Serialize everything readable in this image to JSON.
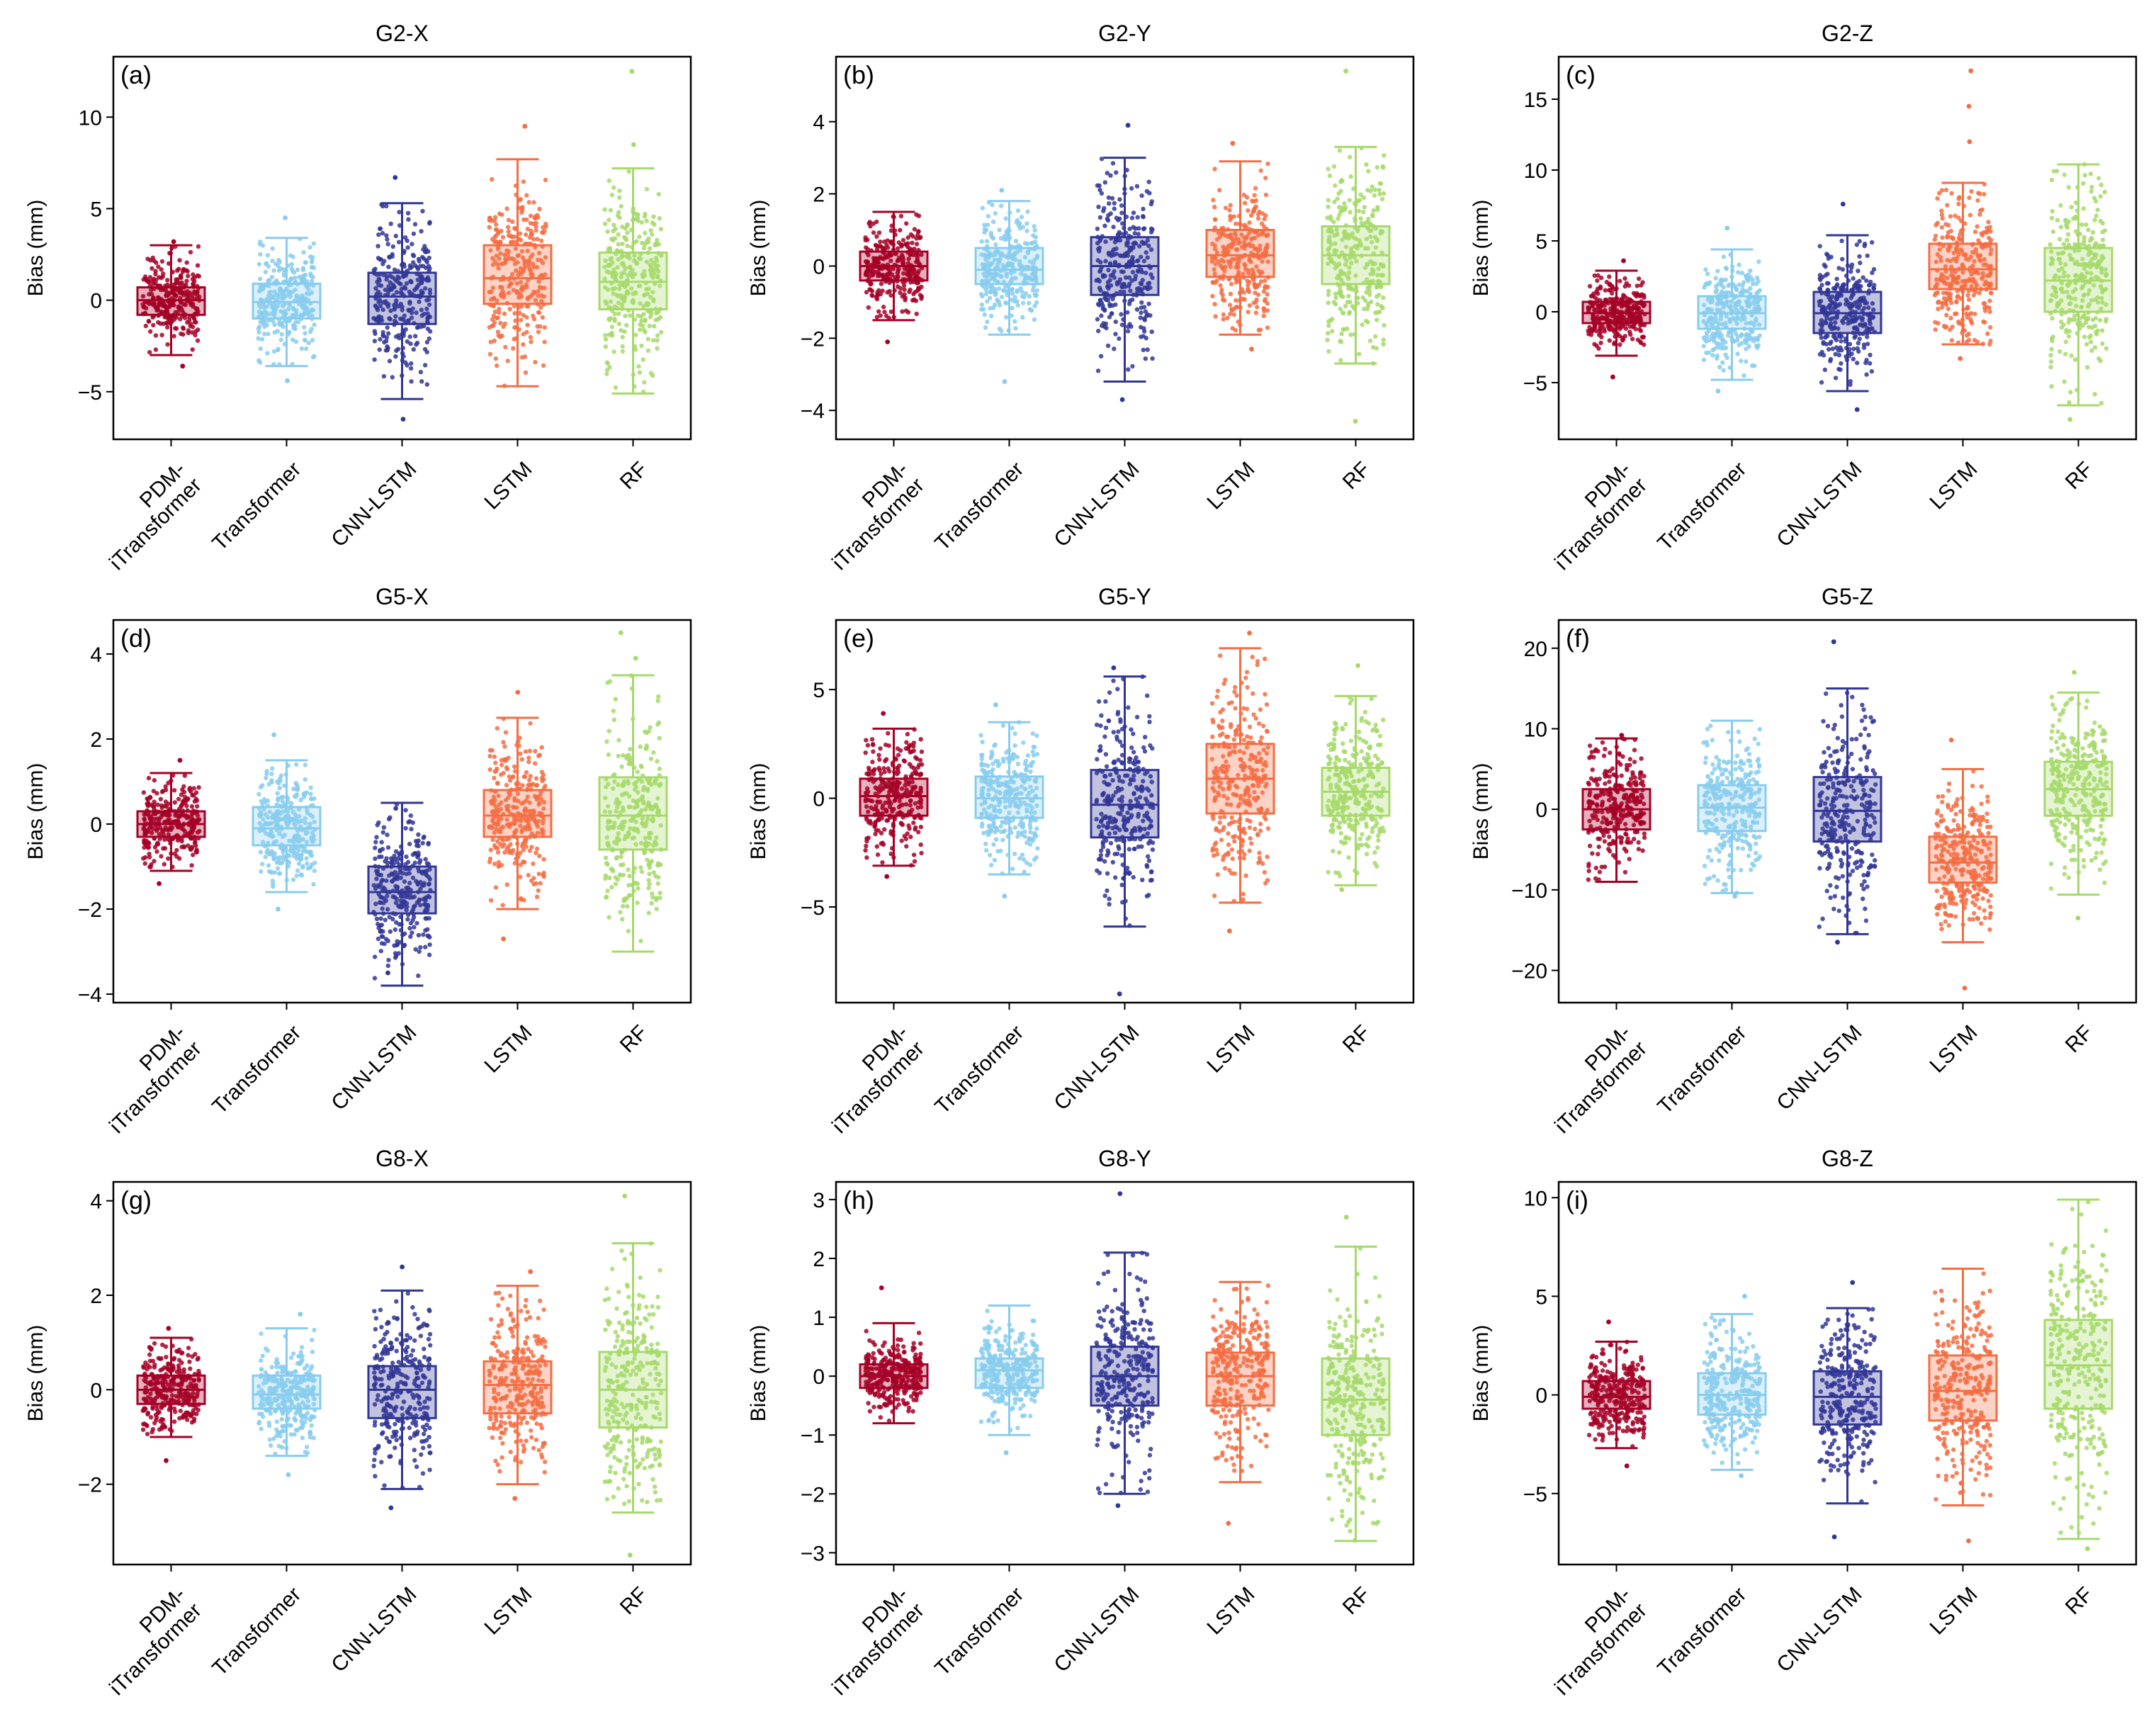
{
  "colors": {
    "PDM-iTransformer": "#a50026",
    "Transformer": "#88ccee",
    "CNN-LSTM": "#313695",
    "LSTM": "#f46d43",
    "RF": "#a6d96a"
  },
  "chart_data": [
    {
      "type": "box",
      "panel_label": "(a)",
      "title": "G2-X",
      "ylabel": "Bias (mm)",
      "ylim": [
        -7.6,
        13.3
      ],
      "yticks": [
        -5,
        0,
        5,
        10
      ],
      "categories": [
        "PDM-\niTransformer",
        "Transformer",
        "CNN-LSTM",
        "LSTM",
        "RF"
      ],
      "series": [
        {
          "name": "PDM-iTransformer",
          "whisker_low": -3.0,
          "q1": -0.8,
          "median": 0.0,
          "q3": 0.7,
          "whisker_high": 3.0,
          "outliers": [
            3.2,
            -3.6
          ]
        },
        {
          "name": "Transformer",
          "whisker_low": -3.6,
          "q1": -1.0,
          "median": -0.1,
          "q3": 0.9,
          "whisker_high": 3.4,
          "outliers": [
            4.5,
            -4.4
          ]
        },
        {
          "name": "CNN-LSTM",
          "whisker_low": -5.4,
          "q1": -1.3,
          "median": 0.2,
          "q3": 1.5,
          "whisker_high": 5.3,
          "outliers": [
            6.7,
            -6.5
          ]
        },
        {
          "name": "LSTM",
          "whisker_low": -4.7,
          "q1": -0.2,
          "median": 1.2,
          "q3": 3.0,
          "whisker_high": 7.7,
          "outliers": [
            9.5
          ]
        },
        {
          "name": "RF",
          "whisker_low": -5.1,
          "q1": -0.5,
          "median": 1.0,
          "q3": 2.6,
          "whisker_high": 7.2,
          "outliers": [
            12.5,
            8.5
          ]
        }
      ]
    },
    {
      "type": "box",
      "panel_label": "(b)",
      "title": "G2-Y",
      "ylabel": "Bias (mm)",
      "ylim": [
        -4.8,
        5.8
      ],
      "yticks": [
        -4,
        -2,
        0,
        2,
        4
      ],
      "categories": [
        "PDM-\niTransformer",
        "Transformer",
        "CNN-LSTM",
        "LSTM",
        "RF"
      ],
      "series": [
        {
          "name": "PDM-iTransformer",
          "whisker_low": -1.5,
          "q1": -0.4,
          "median": 0.0,
          "q3": 0.4,
          "whisker_high": 1.5,
          "outliers": [
            -2.1
          ]
        },
        {
          "name": "Transformer",
          "whisker_low": -1.9,
          "q1": -0.5,
          "median": -0.1,
          "q3": 0.5,
          "whisker_high": 1.8,
          "outliers": [
            2.1,
            -3.2
          ]
        },
        {
          "name": "CNN-LSTM",
          "whisker_low": -3.2,
          "q1": -0.8,
          "median": 0.0,
          "q3": 0.8,
          "whisker_high": 3.0,
          "outliers": [
            3.9,
            -3.7
          ]
        },
        {
          "name": "LSTM",
          "whisker_low": -1.9,
          "q1": -0.3,
          "median": 0.3,
          "q3": 1.0,
          "whisker_high": 2.9,
          "outliers": [
            3.4,
            -2.3
          ]
        },
        {
          "name": "RF",
          "whisker_low": -2.7,
          "q1": -0.5,
          "median": 0.3,
          "q3": 1.1,
          "whisker_high": 3.3,
          "outliers": [
            5.4,
            -4.3
          ]
        }
      ]
    },
    {
      "type": "box",
      "panel_label": "(c)",
      "title": "G2-Z",
      "ylabel": "Bias (mm)",
      "ylim": [
        -9.0,
        18.0
      ],
      "yticks": [
        -5,
        0,
        5,
        10,
        15
      ],
      "categories": [
        "PDM-\niTransformer",
        "Transformer",
        "CNN-LSTM",
        "LSTM",
        "RF"
      ],
      "series": [
        {
          "name": "PDM-iTransformer",
          "whisker_low": -3.1,
          "q1": -0.8,
          "median": -0.1,
          "q3": 0.7,
          "whisker_high": 2.9,
          "outliers": [
            3.6,
            -4.6
          ]
        },
        {
          "name": "Transformer",
          "whisker_low": -4.8,
          "q1": -1.2,
          "median": -0.1,
          "q3": 1.1,
          "whisker_high": 4.4,
          "outliers": [
            5.9,
            -5.6
          ]
        },
        {
          "name": "CNN-LSTM",
          "whisker_low": -5.6,
          "q1": -1.5,
          "median": -0.1,
          "q3": 1.4,
          "whisker_high": 5.4,
          "outliers": [
            7.6,
            -6.9
          ]
        },
        {
          "name": "LSTM",
          "whisker_low": -2.3,
          "q1": 1.6,
          "median": 3.0,
          "q3": 4.8,
          "whisker_high": 9.1,
          "outliers": [
            17.0,
            14.5,
            12.0,
            -3.3
          ]
        },
        {
          "name": "RF",
          "whisker_low": -6.6,
          "q1": 0.0,
          "median": 2.2,
          "q3": 4.5,
          "whisker_high": 10.4,
          "outliers": [
            -7.6
          ]
        }
      ]
    },
    {
      "type": "box",
      "panel_label": "(d)",
      "title": "G5-X",
      "ylabel": "Bias (mm)",
      "ylim": [
        -4.2,
        4.8
      ],
      "yticks": [
        -4,
        -2,
        0,
        2,
        4
      ],
      "categories": [
        "PDM-\niTransformer",
        "Transformer",
        "CNN-LSTM",
        "LSTM",
        "RF"
      ],
      "series": [
        {
          "name": "PDM-iTransformer",
          "whisker_low": -1.1,
          "q1": -0.3,
          "median": 0.0,
          "q3": 0.3,
          "whisker_high": 1.2,
          "outliers": [
            1.5,
            -1.4
          ]
        },
        {
          "name": "Transformer",
          "whisker_low": -1.6,
          "q1": -0.5,
          "median": -0.1,
          "q3": 0.4,
          "whisker_high": 1.5,
          "outliers": [
            2.1,
            -2.0
          ]
        },
        {
          "name": "CNN-LSTM",
          "whisker_low": -3.8,
          "q1": -2.1,
          "median": -1.6,
          "q3": -1.0,
          "whisker_high": 0.5,
          "outliers": [
            -3.5
          ]
        },
        {
          "name": "LSTM",
          "whisker_low": -2.0,
          "q1": -0.3,
          "median": 0.2,
          "q3": 0.8,
          "whisker_high": 2.5,
          "outliers": [
            3.1,
            -2.7
          ]
        },
        {
          "name": "RF",
          "whisker_low": -3.0,
          "q1": -0.6,
          "median": 0.2,
          "q3": 1.1,
          "whisker_high": 3.5,
          "outliers": [
            4.5,
            3.9
          ]
        }
      ]
    },
    {
      "type": "box",
      "panel_label": "(e)",
      "title": "G5-Y",
      "ylabel": "Bias (mm)",
      "ylim": [
        -9.4,
        8.2
      ],
      "yticks": [
        -5,
        0,
        5
      ],
      "categories": [
        "PDM-\niTransformer",
        "Transformer",
        "CNN-LSTM",
        "LSTM",
        "RF"
      ],
      "series": [
        {
          "name": "PDM-iTransformer",
          "whisker_low": -3.1,
          "q1": -0.8,
          "median": 0.1,
          "q3": 0.9,
          "whisker_high": 3.2,
          "outliers": [
            3.9,
            -3.6
          ]
        },
        {
          "name": "Transformer",
          "whisker_low": -3.5,
          "q1": -0.9,
          "median": 0.0,
          "q3": 1.0,
          "whisker_high": 3.5,
          "outliers": [
            4.3,
            -4.5
          ]
        },
        {
          "name": "CNN-LSTM",
          "whisker_low": -5.9,
          "q1": -1.8,
          "median": -0.3,
          "q3": 1.3,
          "whisker_high": 5.6,
          "outliers": [
            6.0,
            -9.0
          ]
        },
        {
          "name": "LSTM",
          "whisker_low": -4.8,
          "q1": -0.7,
          "median": 0.9,
          "q3": 2.5,
          "whisker_high": 6.9,
          "outliers": [
            7.6,
            -6.1
          ]
        },
        {
          "name": "RF",
          "whisker_low": -4.0,
          "q1": -0.8,
          "median": 0.3,
          "q3": 1.4,
          "whisker_high": 4.7,
          "outliers": [
            6.1,
            -4.2
          ]
        }
      ]
    },
    {
      "type": "box",
      "panel_label": "(f)",
      "title": "G5-Z",
      "ylabel": "Bias (mm)",
      "ylim": [
        -24.0,
        23.5
      ],
      "yticks": [
        -20,
        -10,
        0,
        10,
        20
      ],
      "categories": [
        "PDM-\niTransformer",
        "Transformer",
        "CNN-LSTM",
        "LSTM",
        "RF"
      ],
      "series": [
        {
          "name": "PDM-iTransformer",
          "whisker_low": -9.0,
          "q1": -2.5,
          "median": 0.0,
          "q3": 2.5,
          "whisker_high": 8.8,
          "outliers": [
            9.2
          ]
        },
        {
          "name": "Transformer",
          "whisker_low": -10.4,
          "q1": -2.7,
          "median": 0.2,
          "q3": 3.0,
          "whisker_high": 11.0,
          "outliers": [
            -10.8
          ]
        },
        {
          "name": "CNN-LSTM",
          "whisker_low": -15.5,
          "q1": -4.0,
          "median": -0.2,
          "q3": 4.0,
          "whisker_high": 15.0,
          "outliers": [
            20.8,
            -16.5
          ]
        },
        {
          "name": "LSTM",
          "whisker_low": -16.5,
          "q1": -9.1,
          "median": -6.6,
          "q3": -3.4,
          "whisker_high": 5.0,
          "outliers": [
            8.6,
            -22.2
          ]
        },
        {
          "name": "RF",
          "whisker_low": -10.6,
          "q1": -0.8,
          "median": 2.5,
          "q3": 5.9,
          "whisker_high": 14.5,
          "outliers": [
            17.0,
            -13.5
          ]
        }
      ]
    },
    {
      "type": "box",
      "panel_label": "(g)",
      "title": "G8-X",
      "ylabel": "Bias (mm)",
      "ylim": [
        -3.7,
        4.4
      ],
      "yticks": [
        -2,
        0,
        2,
        4
      ],
      "categories": [
        "PDM-\niTransformer",
        "Transformer",
        "CNN-LSTM",
        "LSTM",
        "RF"
      ],
      "series": [
        {
          "name": "PDM-iTransformer",
          "whisker_low": -1.0,
          "q1": -0.3,
          "median": 0.0,
          "q3": 0.3,
          "whisker_high": 1.1,
          "outliers": [
            1.3,
            -1.5
          ]
        },
        {
          "name": "Transformer",
          "whisker_low": -1.4,
          "q1": -0.4,
          "median": -0.1,
          "q3": 0.3,
          "whisker_high": 1.3,
          "outliers": [
            1.6,
            -1.8
          ]
        },
        {
          "name": "CNN-LSTM",
          "whisker_low": -2.1,
          "q1": -0.6,
          "median": 0.0,
          "q3": 0.5,
          "whisker_high": 2.1,
          "outliers": [
            2.6,
            -2.5
          ]
        },
        {
          "name": "LSTM",
          "whisker_low": -2.0,
          "q1": -0.5,
          "median": 0.1,
          "q3": 0.6,
          "whisker_high": 2.2,
          "outliers": [
            2.5,
            -2.3
          ]
        },
        {
          "name": "RF",
          "whisker_low": -2.6,
          "q1": -0.8,
          "median": 0.0,
          "q3": 0.8,
          "whisker_high": 3.1,
          "outliers": [
            4.1,
            -3.5
          ]
        }
      ]
    },
    {
      "type": "box",
      "panel_label": "(h)",
      "title": "G8-Y",
      "ylabel": "Bias (mm)",
      "ylim": [
        -3.2,
        3.3
      ],
      "yticks": [
        -3,
        -2,
        -1,
        0,
        1,
        2,
        3
      ],
      "categories": [
        "PDM-\niTransformer",
        "Transformer",
        "CNN-LSTM",
        "LSTM",
        "RF"
      ],
      "series": [
        {
          "name": "PDM-iTransformer",
          "whisker_low": -0.8,
          "q1": -0.2,
          "median": 0.0,
          "q3": 0.2,
          "whisker_high": 0.9,
          "outliers": [
            1.5
          ]
        },
        {
          "name": "Transformer",
          "whisker_low": -1.0,
          "q1": -0.2,
          "median": 0.1,
          "q3": 0.3,
          "whisker_high": 1.2,
          "outliers": [
            -1.3
          ]
        },
        {
          "name": "CNN-LSTM",
          "whisker_low": -2.0,
          "q1": -0.5,
          "median": 0.0,
          "q3": 0.5,
          "whisker_high": 2.1,
          "outliers": [
            3.1,
            -2.2
          ]
        },
        {
          "name": "LSTM",
          "whisker_low": -1.8,
          "q1": -0.5,
          "median": 0.0,
          "q3": 0.4,
          "whisker_high": 1.6,
          "outliers": [
            -2.5
          ]
        },
        {
          "name": "RF",
          "whisker_low": -2.8,
          "q1": -1.0,
          "median": -0.4,
          "q3": 0.3,
          "whisker_high": 2.2,
          "outliers": [
            2.7
          ]
        }
      ]
    },
    {
      "type": "box",
      "panel_label": "(i)",
      "title": "G8-Z",
      "ylabel": "Bias (mm)",
      "ylim": [
        -8.6,
        10.8
      ],
      "yticks": [
        -5,
        0,
        5,
        10
      ],
      "categories": [
        "PDM-\niTransformer",
        "Transformer",
        "CNN-LSTM",
        "LSTM",
        "RF"
      ],
      "series": [
        {
          "name": "PDM-iTransformer",
          "whisker_low": -2.7,
          "q1": -0.7,
          "median": -0.1,
          "q3": 0.7,
          "whisker_high": 2.7,
          "outliers": [
            3.7,
            -3.6
          ]
        },
        {
          "name": "Transformer",
          "whisker_low": -3.8,
          "q1": -1.0,
          "median": 0.0,
          "q3": 1.1,
          "whisker_high": 4.1,
          "outliers": [
            5.0,
            -4.1
          ]
        },
        {
          "name": "CNN-LSTM",
          "whisker_low": -5.5,
          "q1": -1.5,
          "median": -0.1,
          "q3": 1.2,
          "whisker_high": 4.4,
          "outliers": [
            5.7,
            -7.2
          ]
        },
        {
          "name": "LSTM",
          "whisker_low": -5.6,
          "q1": -1.3,
          "median": 0.2,
          "q3": 2.0,
          "whisker_high": 6.4,
          "outliers": [
            -7.4
          ]
        },
        {
          "name": "RF",
          "whisker_low": -7.3,
          "q1": -0.7,
          "median": 1.5,
          "q3": 3.8,
          "whisker_high": 9.9,
          "outliers": [
            -7.8
          ]
        }
      ]
    }
  ]
}
